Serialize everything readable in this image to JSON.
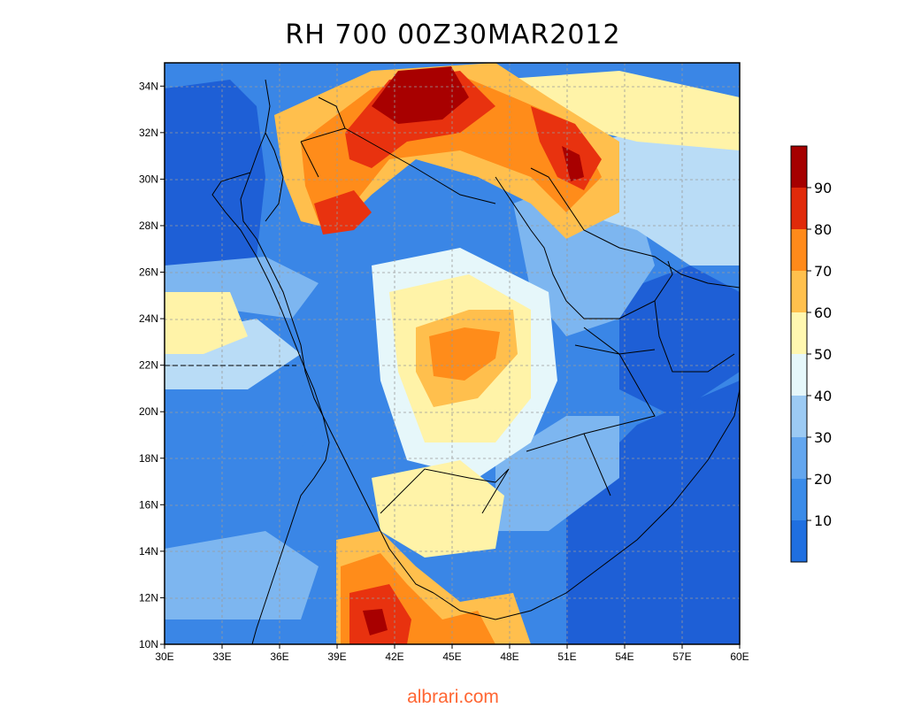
{
  "title": "RH 700 00Z30MAR2012",
  "watermark": "albrari.com",
  "x_ticks": [
    "30E",
    "33E",
    "36E",
    "39E",
    "42E",
    "45E",
    "48E",
    "51E",
    "54E",
    "57E",
    "60E"
  ],
  "y_ticks": [
    "10N",
    "12N",
    "14N",
    "16N",
    "18N",
    "20N",
    "22N",
    "24N",
    "26N",
    "28N",
    "30N",
    "32N",
    "34N"
  ],
  "colorbar": {
    "labels": [
      "10",
      "20",
      "30",
      "40",
      "50",
      "60",
      "70",
      "80",
      "90"
    ],
    "colors": [
      "#1f6fe0",
      "#3a8be8",
      "#63a6ee",
      "#9ccaf3",
      "#e6f7fa",
      "#fff7b0",
      "#ffc04d",
      "#ff8a1a",
      "#e02a0a",
      "#a50000"
    ]
  },
  "colors": {
    "deep_blue": "#1e5fd6",
    "mid_blue": "#3a86e6",
    "light_blue": "#7db6f0",
    "pale_blue": "#b9dcf6",
    "pale_cyan": "#e6f7fa",
    "pale_yellow": "#fff3a8",
    "orange_light": "#ffbf4d",
    "orange": "#ff8c1a",
    "red": "#e8320f",
    "dark_red": "#a80000"
  }
}
